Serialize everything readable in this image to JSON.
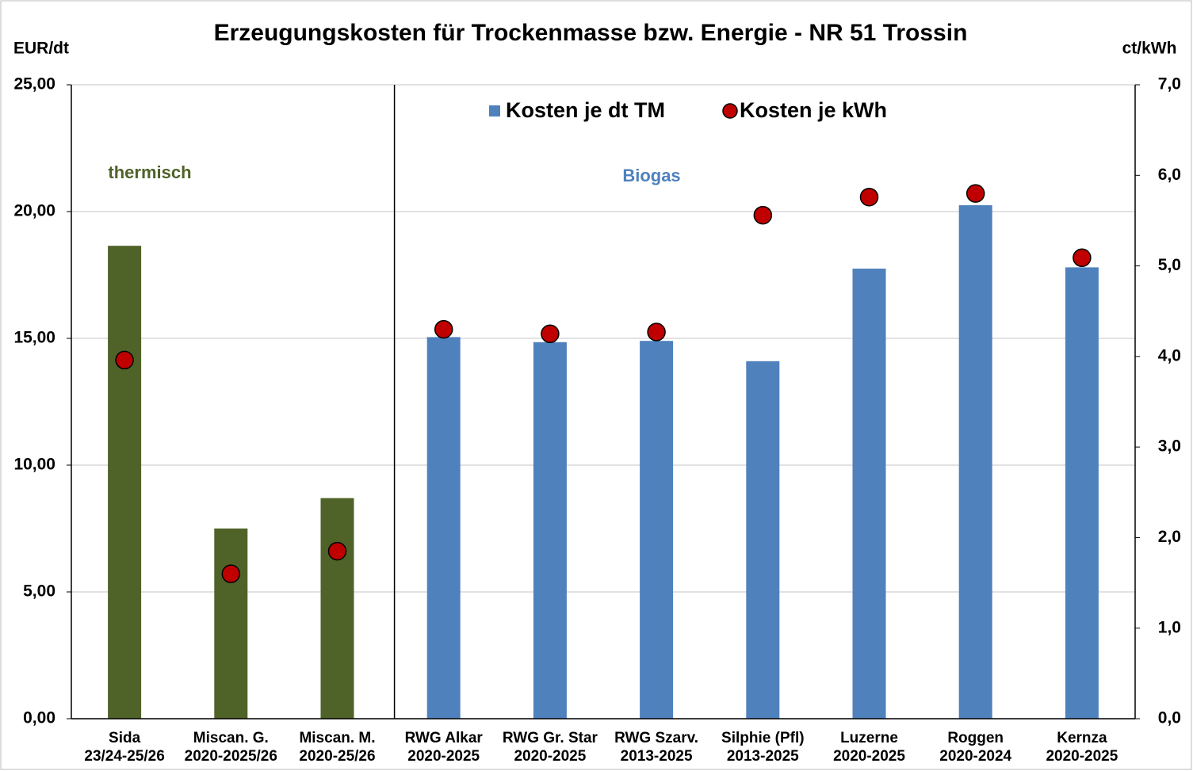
{
  "chart_data": {
    "type": "bar",
    "title": "Erzeugungskosten  für Trockenmasse  bzw. Energie - NR 51 Trossin",
    "y_label": "EUR/dt",
    "y2_label": "ct/kWh",
    "categories": [
      [
        "Sida",
        "23/24-25/26"
      ],
      [
        "Miscan. G.",
        "2020-2025/26"
      ],
      [
        "Miscan. M.",
        "2020-25/26"
      ],
      [
        "RWG Alkar",
        "2020-2025"
      ],
      [
        "RWG Gr. Star",
        "2020-2025"
      ],
      [
        "RWG Szarv.",
        "2013-2025"
      ],
      [
        "Silphie (Pfl)",
        "2013-2025"
      ],
      [
        "Luzerne",
        "2020-2025"
      ],
      [
        "Roggen",
        "2020-2024"
      ],
      [
        "Kernza",
        "2020-2025"
      ]
    ],
    "series": [
      {
        "name": "Kosten je dt TM",
        "color": "#4f81bd",
        "colors": [
          "#4f6228",
          "#4f6228",
          "#4f6228",
          "#4f81bd",
          "#4f81bd",
          "#4f81bd",
          "#4f81bd",
          "#4f81bd",
          "#4f81bd",
          "#4f81bd"
        ],
        "values": [
          18.65,
          7.5,
          8.7,
          15.05,
          14.85,
          14.9,
          14.1,
          17.75,
          20.25,
          17.8
        ]
      },
      {
        "name": "Kosten je kWh",
        "color": "#c00000",
        "axis": "y2",
        "type": "scatter",
        "values": [
          3.96,
          1.6,
          1.85,
          4.3,
          4.25,
          4.27,
          5.56,
          5.76,
          5.8,
          5.09
        ]
      }
    ],
    "annotations": [
      {
        "text": "thermisch",
        "color": "#4f6228"
      },
      {
        "text": "Biogas",
        "color": "#4f81bd"
      }
    ],
    "ylim": [
      0,
      25
    ],
    "yticks": [
      {
        "value": 0,
        "label": "0,00"
      },
      {
        "value": 5,
        "label": "5,00"
      },
      {
        "value": 10,
        "label": "10,00"
      },
      {
        "value": 15,
        "label": "15,00"
      },
      {
        "value": 20,
        "label": "20,00"
      },
      {
        "value": 25,
        "label": "25,00"
      }
    ],
    "y2lim": [
      0,
      7
    ],
    "y2ticks": [
      {
        "value": 0,
        "label": "0,0"
      },
      {
        "value": 1,
        "label": "1,0"
      },
      {
        "value": 2,
        "label": "2,0"
      },
      {
        "value": 3,
        "label": "3,0"
      },
      {
        "value": 4,
        "label": "4,0"
      },
      {
        "value": 5,
        "label": "5,0"
      },
      {
        "value": 6,
        "label": "6,0"
      },
      {
        "value": 7,
        "label": "7,0"
      }
    ],
    "grid": true,
    "legend": "top"
  }
}
